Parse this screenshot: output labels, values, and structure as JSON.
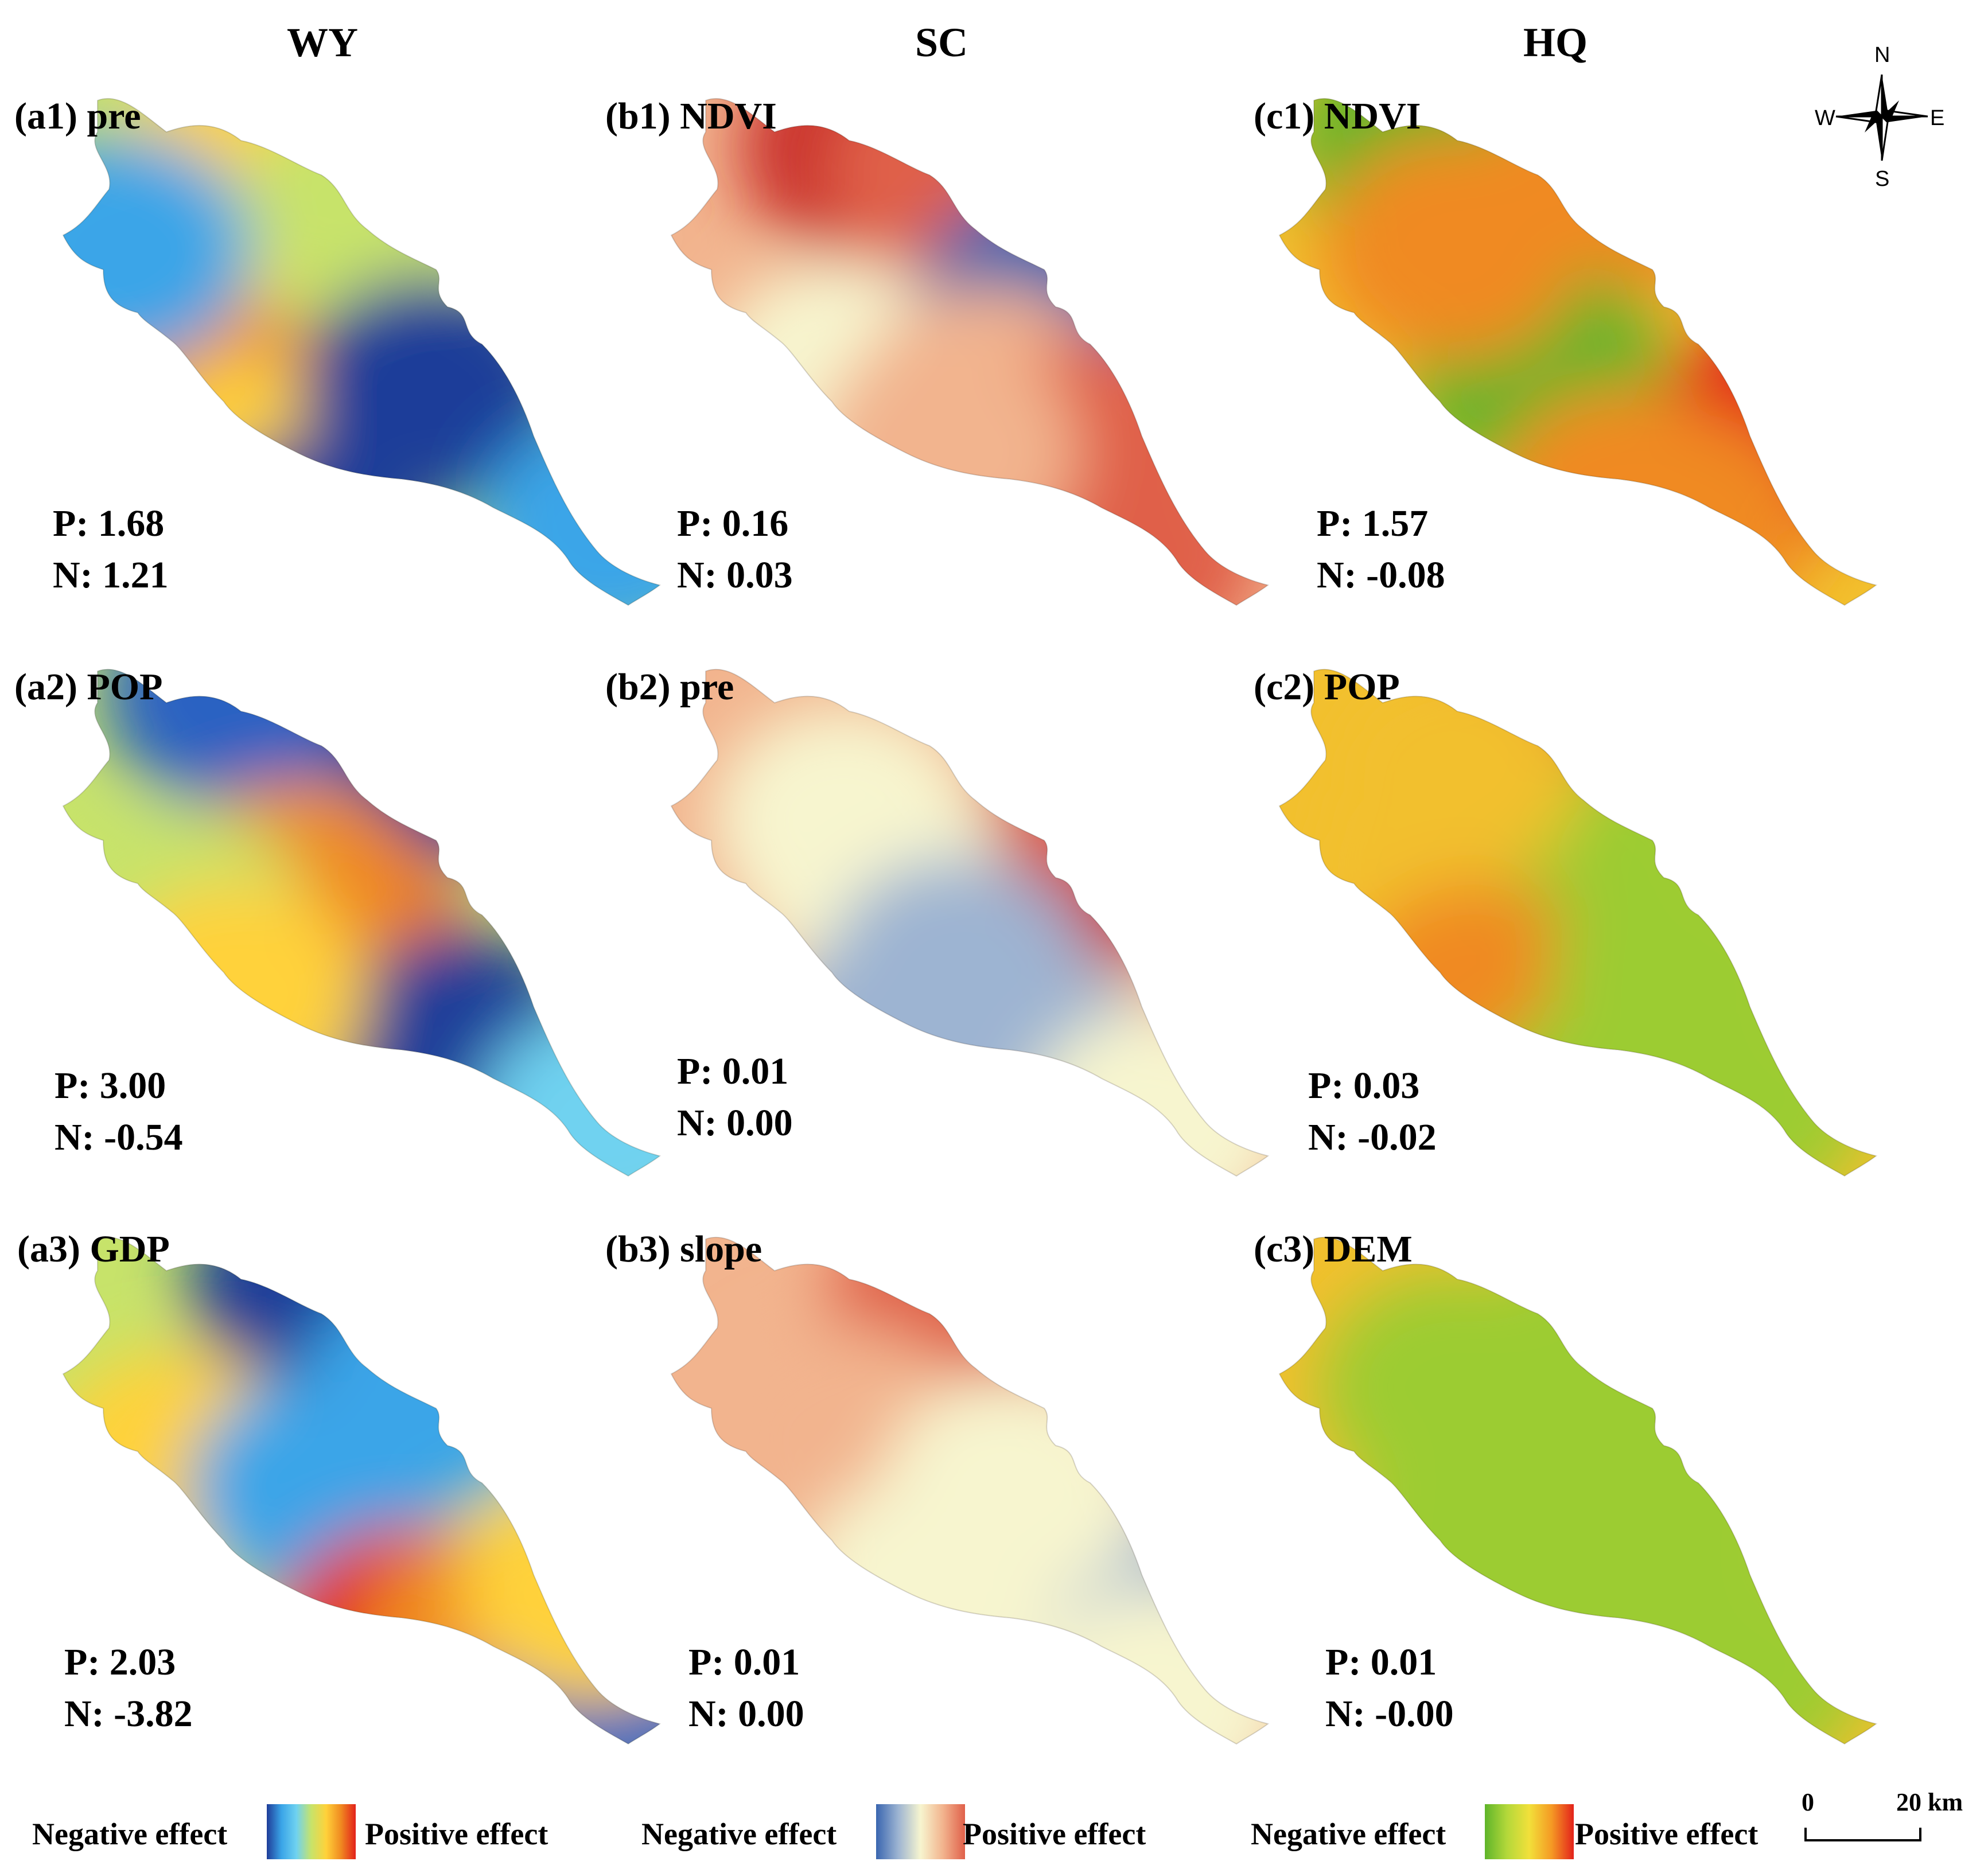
{
  "columns": [
    "WY",
    "SC",
    "HQ"
  ],
  "panels": [
    {
      "label": "(a1) pre",
      "p": "P: 1.68",
      "n": "N: 1.21",
      "scheme": "wy",
      "stops": [
        [
          0.3,
          0.16,
          0.78
        ],
        [
          0.26,
          0.62,
          0.9
        ],
        [
          0.1,
          0.3,
          0.22
        ],
        [
          0.36,
          0.74,
          0.7
        ],
        [
          0.42,
          0.91,
          0.06
        ],
        [
          0.55,
          0.2,
          0.63
        ],
        [
          0.64,
          0.58,
          0.02
        ],
        [
          0.95,
          0.86,
          0.22
        ]
      ]
    },
    {
      "label": "(b1) NDVI",
      "p": "P: 0.16",
      "n": "N: 0.03",
      "scheme": "sc",
      "stops": [
        [
          0.35,
          0.1,
          0.92
        ],
        [
          0.5,
          0.15,
          0.78
        ],
        [
          0.3,
          0.55,
          0.48
        ],
        [
          0.66,
          0.4,
          0.06
        ],
        [
          0.55,
          0.6,
          0.5
        ],
        [
          0.75,
          0.7,
          0.78
        ],
        [
          0.8,
          0.9,
          0.72
        ],
        [
          0.48,
          0.7,
          0.55
        ]
      ]
    },
    {
      "label": "(c1) NDVI",
      "p": "P: 1.57",
      "n": "N: -0.08",
      "scheme": "hq",
      "stops": [
        [
          0.25,
          0.1,
          0.06
        ],
        [
          0.3,
          0.3,
          0.82
        ],
        [
          0.55,
          0.2,
          0.72
        ],
        [
          0.45,
          0.55,
          0.08
        ],
        [
          0.88,
          0.65,
          0.95
        ],
        [
          0.7,
          0.85,
          0.82
        ],
        [
          0.3,
          0.3,
          0.78
        ],
        [
          0.6,
          0.8,
          0.72
        ]
      ]
    },
    {
      "label": "(a2) POP",
      "p": "P: 3.00",
      "n": "N: -0.54",
      "scheme": "wy",
      "stops": [
        [
          0.3,
          0.05,
          0.1
        ],
        [
          0.7,
          0.15,
          0.05
        ],
        [
          0.45,
          0.5,
          0.95
        ],
        [
          0.4,
          0.45,
          0.8
        ],
        [
          0.2,
          0.5,
          0.6
        ],
        [
          0.7,
          0.75,
          0.06
        ],
        [
          0.3,
          0.65,
          0.7
        ],
        [
          0.95,
          0.9,
          0.38
        ]
      ]
    },
    {
      "label": "(b2) pre",
      "p": "P: 0.01",
      "n": "N: 0.00",
      "scheme": "sc",
      "stops": [
        [
          0.3,
          0.3,
          0.3
        ],
        [
          0.75,
          0.35,
          0.92
        ],
        [
          0.8,
          0.2,
          0.85
        ],
        [
          0.35,
          0.4,
          0.45
        ],
        [
          0.4,
          0.75,
          0.12
        ],
        [
          0.65,
          0.8,
          0.14
        ],
        [
          0.5,
          0.6,
          0.2
        ],
        [
          0.85,
          0.9,
          0.3
        ]
      ]
    },
    {
      "label": "(c2) POP",
      "p": "P: 0.03",
      "n": "N: -0.02",
      "scheme": "hq",
      "stops": [
        [
          0.5,
          0.05,
          0.92
        ],
        [
          0.25,
          0.4,
          0.66
        ],
        [
          0.55,
          0.4,
          0.15
        ],
        [
          0.35,
          0.65,
          0.8
        ],
        [
          0.55,
          0.9,
          0.22
        ],
        [
          0.7,
          0.6,
          0.22
        ],
        [
          0.3,
          0.2,
          0.6
        ],
        [
          0.8,
          0.85,
          0.24
        ]
      ]
    },
    {
      "label": "(a3) GDP",
      "p": "P: 2.03",
      "n": "N: -3.82",
      "scheme": "wy",
      "stops": [
        [
          0.45,
          0.1,
          0.05
        ],
        [
          0.2,
          0.45,
          0.7
        ],
        [
          0.45,
          0.5,
          0.35
        ],
        [
          0.6,
          0.8,
          0.96
        ],
        [
          0.75,
          0.8,
          0.8
        ],
        [
          0.65,
          0.3,
          0.28
        ],
        [
          0.95,
          0.88,
          0.2
        ],
        [
          0.92,
          0.7,
          0.78
        ]
      ]
    },
    {
      "label": "(b3) slope",
      "p": "P: 0.01",
      "n": "N: 0.00",
      "scheme": "sc",
      "stops": [
        [
          0.5,
          0.4,
          0.95
        ],
        [
          0.5,
          0.15,
          0.75
        ],
        [
          0.3,
          0.4,
          0.6
        ],
        [
          0.7,
          0.7,
          0.1
        ],
        [
          0.8,
          0.85,
          0.25
        ],
        [
          0.45,
          0.7,
          0.45
        ],
        [
          0.6,
          0.5,
          0.42
        ],
        [
          0.85,
          0.92,
          0.42
        ]
      ]
    },
    {
      "label": "(c3) DEM",
      "p": "P: 0.01",
      "n": "N: -0.00",
      "scheme": "hq",
      "stops": [
        [
          0.5,
          0.6,
          0.96
        ],
        [
          0.52,
          0.58,
          0.72
        ],
        [
          0.3,
          0.3,
          0.12
        ],
        [
          0.7,
          0.5,
          0.12
        ],
        [
          0.5,
          0.8,
          0.1
        ],
        [
          0.8,
          0.85,
          0.12
        ],
        [
          0.35,
          0.6,
          0.14
        ],
        [
          0.6,
          0.2,
          0.1
        ]
      ]
    }
  ],
  "legend": [
    {
      "negative": "Negative effect",
      "positive": "Positive effect",
      "colors": [
        "#1f3d99",
        "#3aa5e8",
        "#6fd2f0",
        "#c7e36a",
        "#ffd23a",
        "#f08a20",
        "#e3221b"
      ]
    },
    {
      "negative": "Negative effect",
      "positive": "Positive effect",
      "colors": [
        "#3a66b0",
        "#9db4d2",
        "#f7f5cf",
        "#f2b48e",
        "#e0604a"
      ]
    },
    {
      "negative": "Negative effect",
      "positive": "Positive effect",
      "colors": [
        "#5fb52a",
        "#b4d83a",
        "#f2e03a",
        "#f59a24",
        "#e3221b"
      ]
    }
  ],
  "north_arrow": {
    "n": "N",
    "s": "S",
    "e": "E",
    "w": "W"
  },
  "scale_bar": {
    "start": "0",
    "end": "20 km"
  },
  "schemes": {
    "wy": [
      "#1f3d99",
      "#2a62c2",
      "#3aa5e8",
      "#6fd2f0",
      "#c7e36a",
      "#ffd23a",
      "#f08a20",
      "#e3221b"
    ],
    "sc": [
      "#3a66b0",
      "#9db4d2",
      "#f7f5cf",
      "#f2b48e",
      "#e0604a",
      "#c92f2a"
    ],
    "hq": [
      "#5fb52a",
      "#9ccc32",
      "#d6e038",
      "#f2c02e",
      "#f08a20",
      "#e3221b"
    ]
  }
}
